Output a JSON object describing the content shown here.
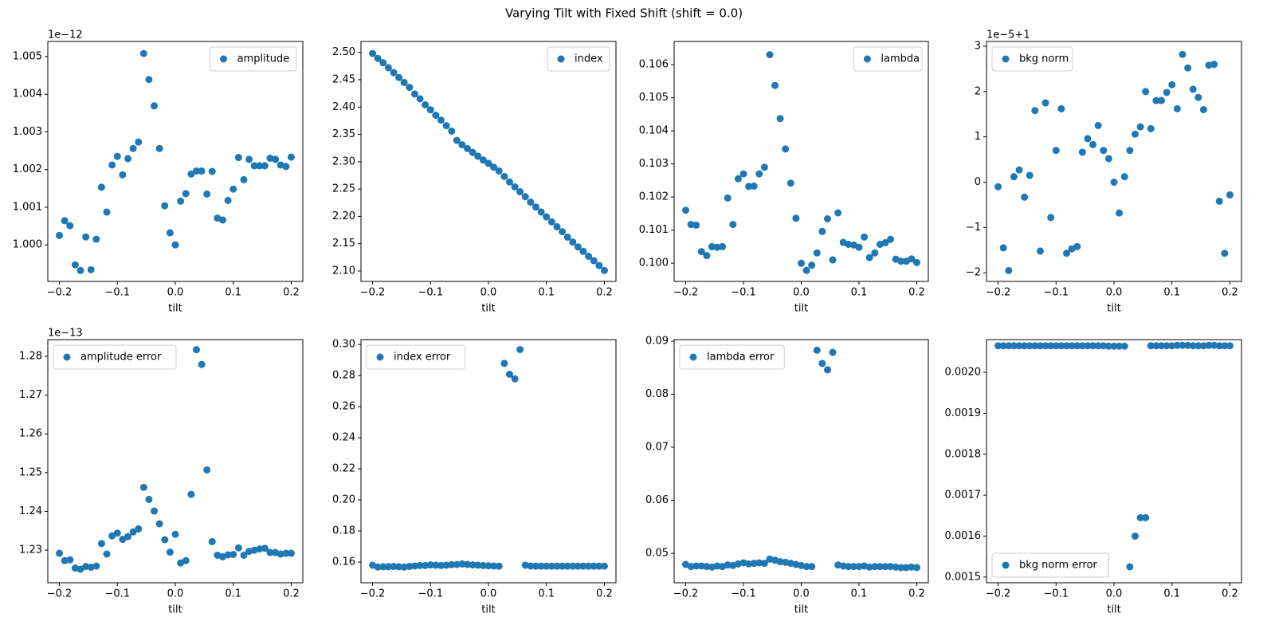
{
  "title": "Varying Tilt with Fixed Shift (shift = 0.0)",
  "chart_data": [
    {
      "type": "scatter",
      "xlabel": "tilt",
      "offset_text": "1e−12",
      "legend": "upper right",
      "x": [
        -0.2,
        -0.1909,
        -0.1818,
        -0.1727,
        -0.1636,
        -0.1545,
        -0.1455,
        -0.1364,
        -0.1273,
        -0.1182,
        -0.1091,
        -0.1,
        -0.0909,
        -0.0818,
        -0.0727,
        -0.0636,
        -0.0545,
        -0.0455,
        -0.0364,
        -0.0273,
        -0.0182,
        -0.0091,
        0,
        0.0091,
        0.0182,
        0.0273,
        0.0364,
        0.0455,
        0.0545,
        0.0636,
        0.0727,
        0.0818,
        0.0909,
        0.1,
        0.1091,
        0.1182,
        0.1273,
        0.1364,
        0.1455,
        0.1545,
        0.1636,
        0.1727,
        0.1818,
        0.1909,
        0.2
      ],
      "series": [
        {
          "name": "amplitude",
          "color": "#1f77b4",
          "values": [
            1.00025,
            1.00064,
            1.00051,
            0.99947,
            0.99932,
            1.00021,
            0.99934,
            1.00015,
            1.00153,
            1.00087,
            1.00212,
            1.00235,
            1.00186,
            1.00229,
            1.00256,
            1.00273,
            1.00508,
            1.00439,
            1.00369,
            1.00256,
            1.00104,
            1.00032,
            1.0,
            1.00116,
            1.00136,
            1.00188,
            1.00196,
            1.00196,
            1.00135,
            1.00195,
            1.00071,
            1.00066,
            1.00118,
            1.00148,
            1.00232,
            1.00173,
            1.00227,
            1.0021,
            1.0021,
            1.0021,
            1.0023,
            1.00227,
            1.00212,
            1.00208,
            1.00233
          ]
        }
      ],
      "xlim": [
        -0.22,
        0.22
      ],
      "ylim": [
        0.99903,
        1.0054
      ],
      "xticks": [
        {
          "value": -0.2,
          "label": "−0.2"
        },
        {
          "value": -0.1,
          "label": "−0.1"
        },
        {
          "value": 0,
          "label": "0.0"
        },
        0.1,
        0.2
      ],
      "yticks": [
        {
          "value": 1,
          "label": "1.000"
        },
        1.001,
        1.002,
        1.003,
        1.004,
        1.005
      ]
    },
    {
      "type": "scatter",
      "xlabel": "tilt",
      "legend": "upper right",
      "x": [
        -0.2,
        -0.1909,
        -0.1818,
        -0.1727,
        -0.1636,
        -0.1545,
        -0.1455,
        -0.1364,
        -0.1273,
        -0.1182,
        -0.1091,
        -0.1,
        -0.0909,
        -0.0818,
        -0.0727,
        -0.0636,
        -0.0545,
        -0.0455,
        -0.0364,
        -0.0273,
        -0.0182,
        -0.0091,
        0,
        0.0091,
        0.0182,
        0.0273,
        0.0364,
        0.0455,
        0.0545,
        0.0636,
        0.0727,
        0.0818,
        0.0909,
        0.1,
        0.1091,
        0.1182,
        0.1273,
        0.1364,
        0.1455,
        0.1545,
        0.1636,
        0.1727,
        0.1818,
        0.1909,
        0.2
      ],
      "series": [
        {
          "name": "index",
          "color": "#1f77b4",
          "values": [
            2.498,
            2.489,
            2.481,
            2.472,
            2.463,
            2.454,
            2.445,
            2.436,
            2.424,
            2.415,
            2.404,
            2.395,
            2.385,
            2.376,
            2.366,
            2.356,
            2.339,
            2.331,
            2.324,
            2.317,
            2.31,
            2.303,
            2.297,
            2.29,
            2.283,
            2.273,
            2.263,
            2.254,
            2.245,
            2.236,
            2.226,
            2.217,
            2.208,
            2.199,
            2.19,
            2.181,
            2.172,
            2.162,
            2.153,
            2.144,
            2.136,
            2.127,
            2.119,
            2.11,
            2.101
          ]
        }
      ],
      "xlim": [
        -0.22,
        0.22
      ],
      "ylim": [
        2.081,
        2.52
      ],
      "xticks": [
        {
          "value": -0.2,
          "label": "−0.2"
        },
        {
          "value": -0.1,
          "label": "−0.1"
        },
        {
          "value": 0,
          "label": "0.0"
        },
        0.1,
        0.2
      ],
      "yticks": [
        {
          "value": 2.1,
          "label": "2.10"
        },
        2.15,
        {
          "value": 2.2,
          "label": "2.20"
        },
        2.25,
        {
          "value": 2.3,
          "label": "2.30"
        },
        2.35,
        {
          "value": 2.4,
          "label": "2.40"
        },
        2.45,
        {
          "value": 2.5,
          "label": "2.50"
        }
      ]
    },
    {
      "type": "scatter",
      "xlabel": "tilt",
      "legend": "upper right",
      "x": [
        -0.2,
        -0.1909,
        -0.1818,
        -0.1727,
        -0.1636,
        -0.1545,
        -0.1455,
        -0.1364,
        -0.1273,
        -0.1182,
        -0.1091,
        -0.1,
        -0.0909,
        -0.0818,
        -0.0727,
        -0.0636,
        -0.0545,
        -0.0455,
        -0.0364,
        -0.0273,
        -0.0182,
        -0.0091,
        0,
        0.0091,
        0.0182,
        0.0273,
        0.0364,
        0.0455,
        0.0545,
        0.0636,
        0.0727,
        0.0818,
        0.0909,
        0.1,
        0.1091,
        0.1182,
        0.1273,
        0.1364,
        0.1455,
        0.1545,
        0.1636,
        0.1727,
        0.1818,
        0.1909,
        0.2
      ],
      "series": [
        {
          "name": "lambda",
          "color": "#1f77b4",
          "values": [
            0.1016,
            0.10117,
            0.10115,
            0.10035,
            0.10023,
            0.1005,
            0.10048,
            0.1005,
            0.10197,
            0.10117,
            0.10255,
            0.1027,
            0.10232,
            0.10233,
            0.1027,
            0.1029,
            0.1063,
            0.10537,
            0.10437,
            0.10345,
            0.10242,
            0.10136,
            0.1,
            0.09978,
            0.09994,
            0.10031,
            0.10096,
            0.10134,
            0.1001,
            0.10152,
            0.10063,
            0.10057,
            0.10055,
            0.10048,
            0.10079,
            0.10017,
            0.10031,
            0.10057,
            0.10062,
            0.10072,
            0.10012,
            0.10006,
            0.10006,
            0.10013,
            0.10002
          ]
        }
      ],
      "xlim": [
        -0.22,
        0.22
      ],
      "ylim": [
        0.09945,
        0.1067
      ],
      "xticks": [
        {
          "value": -0.2,
          "label": "−0.2"
        },
        {
          "value": -0.1,
          "label": "−0.1"
        },
        {
          "value": 0,
          "label": "0.0"
        },
        0.1,
        0.2
      ],
      "yticks": [
        {
          "value": 0.1,
          "label": "0.100"
        },
        0.101,
        0.102,
        0.103,
        0.104,
        0.105,
        0.106
      ]
    },
    {
      "type": "scatter",
      "xlabel": "tilt",
      "offset_text": "1e−5+1",
      "legend": "upper left",
      "x": [
        -0.2,
        -0.1909,
        -0.1818,
        -0.1727,
        -0.1636,
        -0.1545,
        -0.1455,
        -0.1364,
        -0.1273,
        -0.1182,
        -0.1091,
        -0.1,
        -0.0909,
        -0.0818,
        -0.0727,
        -0.0636,
        -0.0545,
        -0.0455,
        -0.0364,
        -0.0273,
        -0.0182,
        -0.0091,
        0,
        0.0091,
        0.0182,
        0.0273,
        0.0364,
        0.0455,
        0.0545,
        0.0636,
        0.0727,
        0.0818,
        0.0909,
        0.1,
        0.1091,
        0.1182,
        0.1273,
        0.1364,
        0.1455,
        0.1545,
        0.1636,
        0.1727,
        0.1818,
        0.1909,
        0.2
      ],
      "series": [
        {
          "name": "bkg norm",
          "color": "#1f77b4",
          "values": [
            -0.1,
            -1.45,
            -1.95,
            0.12,
            0.27,
            -0.33,
            0.15,
            1.58,
            -1.52,
            1.75,
            -0.78,
            0.7,
            1.62,
            -1.57,
            -1.47,
            -1.42,
            0.66,
            0.96,
            0.83,
            1.25,
            0.7,
            0.52,
            0,
            -0.68,
            0.12,
            0.7,
            1.06,
            1.22,
            2.0,
            1.18,
            1.8,
            1.8,
            1.98,
            2.15,
            1.62,
            2.82,
            2.52,
            2.05,
            1.87,
            1.6,
            2.58,
            2.6,
            -0.42,
            -1.57,
            -0.28
          ]
        }
      ],
      "xlim": [
        -0.22,
        0.22
      ],
      "ylim": [
        -2.19,
        3.105
      ],
      "xticks": [
        {
          "value": -0.2,
          "label": "−0.2"
        },
        {
          "value": -0.1,
          "label": "−0.1"
        },
        {
          "value": 0,
          "label": "0.0"
        },
        0.1,
        0.2
      ],
      "yticks": [
        {
          "value": -2,
          "label": "−2"
        },
        {
          "value": -1,
          "label": "−1"
        },
        0,
        1,
        2,
        3
      ]
    },
    {
      "type": "scatter",
      "xlabel": "tilt",
      "offset_text": "1e−13",
      "legend": "upper left",
      "x": [
        -0.2,
        -0.1909,
        -0.1818,
        -0.1727,
        -0.1636,
        -0.1545,
        -0.1455,
        -0.1364,
        -0.1273,
        -0.1182,
        -0.1091,
        -0.1,
        -0.0909,
        -0.0818,
        -0.0727,
        -0.0636,
        -0.0545,
        -0.0455,
        -0.0364,
        -0.0273,
        -0.0182,
        -0.0091,
        0,
        0.0091,
        0.0182,
        0.0273,
        0.0364,
        0.0455,
        0.0545,
        0.0636,
        0.0727,
        0.0818,
        0.0909,
        0.1,
        0.1091,
        0.1182,
        0.1273,
        0.1364,
        0.1455,
        0.1545,
        0.1636,
        0.1727,
        0.1818,
        0.1909,
        0.2
      ],
      "series": [
        {
          "name": "amplitude error",
          "color": "#1f77b4",
          "values": [
            1.2292,
            1.2273,
            1.2275,
            1.2254,
            1.2251,
            1.2258,
            1.2256,
            1.2259,
            1.2317,
            1.229,
            1.2337,
            1.2344,
            1.2328,
            1.2335,
            1.2347,
            1.2355,
            1.2462,
            1.2431,
            1.2401,
            1.2368,
            1.2327,
            1.2295,
            1.2341,
            1.2267,
            1.2273,
            1.2444,
            1.2817,
            1.2779,
            1.2507,
            1.2322,
            1.2287,
            1.2283,
            1.2288,
            1.2289,
            1.2306,
            1.2287,
            1.2297,
            1.23,
            1.2303,
            1.2305,
            1.2294,
            1.2294,
            1.229,
            1.2292,
            1.2292
          ]
        }
      ],
      "xlim": [
        -0.22,
        0.22
      ],
      "ylim": [
        1.2216,
        1.2843
      ],
      "xticks": [
        {
          "value": -0.2,
          "label": "−0.2"
        },
        {
          "value": -0.1,
          "label": "−0.1"
        },
        {
          "value": 0,
          "label": "0.0"
        },
        0.1,
        0.2
      ],
      "yticks": [
        1.23,
        1.24,
        1.25,
        1.26,
        1.27,
        1.28
      ]
    },
    {
      "type": "scatter",
      "xlabel": "tilt",
      "legend": "upper left",
      "x": [
        -0.2,
        -0.1909,
        -0.1818,
        -0.1727,
        -0.1636,
        -0.1545,
        -0.1455,
        -0.1364,
        -0.1273,
        -0.1182,
        -0.1091,
        -0.1,
        -0.0909,
        -0.0818,
        -0.0727,
        -0.0636,
        -0.0545,
        -0.0455,
        -0.0364,
        -0.0273,
        -0.0182,
        -0.0091,
        0,
        0.0091,
        0.0182,
        0.0273,
        0.0364,
        0.0455,
        0.0545,
        0.0636,
        0.0727,
        0.0818,
        0.0909,
        0.1,
        0.1091,
        0.1182,
        0.1273,
        0.1364,
        0.1455,
        0.1545,
        0.1636,
        0.1727,
        0.1818,
        0.1909,
        0.2
      ],
      "series": [
        {
          "name": "index error",
          "color": "#1f77b4",
          "values": [
            0.158,
            0.1568,
            0.157,
            0.157,
            0.1572,
            0.157,
            0.1568,
            0.1572,
            0.1575,
            0.1578,
            0.1578,
            0.1582,
            0.158,
            0.1578,
            0.158,
            0.1583,
            0.1585,
            0.1588,
            0.1585,
            0.1582,
            0.158,
            0.1578,
            0.1576,
            0.1575,
            0.1574,
            0.2878,
            0.2808,
            0.2779,
            0.2967,
            0.158,
            0.1575,
            0.1574,
            0.1574,
            0.1574,
            0.1574,
            0.1574,
            0.1574,
            0.1574,
            0.1574,
            0.1574,
            0.1574,
            0.1574,
            0.1574,
            0.1574,
            0.1574
          ]
        }
      ],
      "xlim": [
        -0.22,
        0.22
      ],
      "ylim": [
        0.1467,
        0.3031
      ],
      "xticks": [
        {
          "value": -0.2,
          "label": "−0.2"
        },
        {
          "value": -0.1,
          "label": "−0.1"
        },
        {
          "value": 0,
          "label": "0.0"
        },
        0.1,
        0.2
      ],
      "yticks": [
        0.16,
        0.18,
        {
          "value": 0.2,
          "label": "0.20"
        },
        0.22,
        0.24,
        0.26,
        0.28,
        {
          "value": 0.3,
          "label": "0.30"
        }
      ]
    },
    {
      "type": "scatter",
      "xlabel": "tilt",
      "legend": "upper left",
      "x": [
        -0.2,
        -0.1909,
        -0.1818,
        -0.1727,
        -0.1636,
        -0.1545,
        -0.1455,
        -0.1364,
        -0.1273,
        -0.1182,
        -0.1091,
        -0.1,
        -0.0909,
        -0.0818,
        -0.0727,
        -0.0636,
        -0.0545,
        -0.0455,
        -0.0364,
        -0.0273,
        -0.0182,
        -0.0091,
        0,
        0.0091,
        0.0182,
        0.0273,
        0.0364,
        0.0455,
        0.0545,
        0.0636,
        0.0727,
        0.0818,
        0.0909,
        0.1,
        0.1091,
        0.1182,
        0.1273,
        0.1364,
        0.1455,
        0.1545,
        0.1636,
        0.1727,
        0.1818,
        0.1909,
        0.2
      ],
      "series": [
        {
          "name": "lambda error",
          "color": "#1f77b4",
          "values": [
            0.0479,
            0.0475,
            0.0476,
            0.0476,
            0.0475,
            0.0474,
            0.0476,
            0.0475,
            0.0478,
            0.0477,
            0.048,
            0.0482,
            0.048,
            0.0481,
            0.0482,
            0.0481,
            0.0489,
            0.0487,
            0.0484,
            0.0483,
            0.0481,
            0.0479,
            0.0477,
            0.0475,
            0.0475,
            0.0883,
            0.0858,
            0.0846,
            0.0879,
            0.0478,
            0.0476,
            0.0475,
            0.0475,
            0.0475,
            0.0476,
            0.0474,
            0.0475,
            0.0475,
            0.0475,
            0.0475,
            0.0474,
            0.0473,
            0.0473,
            0.0474,
            0.0473
          ]
        }
      ],
      "xlim": [
        -0.22,
        0.22
      ],
      "ylim": [
        0.04444,
        0.0903
      ],
      "xticks": [
        {
          "value": -0.2,
          "label": "−0.2"
        },
        {
          "value": -0.1,
          "label": "−0.1"
        },
        {
          "value": 0,
          "label": "0.0"
        },
        0.1,
        0.2
      ],
      "yticks": [
        0.05,
        0.06,
        0.07,
        0.08,
        0.09
      ]
    },
    {
      "type": "scatter",
      "xlabel": "tilt",
      "legend": "lower left",
      "x": [
        -0.2,
        -0.1909,
        -0.1818,
        -0.1727,
        -0.1636,
        -0.1545,
        -0.1455,
        -0.1364,
        -0.1273,
        -0.1182,
        -0.1091,
        -0.1,
        -0.0909,
        -0.0818,
        -0.0727,
        -0.0636,
        -0.0545,
        -0.0455,
        -0.0364,
        -0.0273,
        -0.0182,
        -0.0091,
        0,
        0.0091,
        0.0182,
        0.0273,
        0.0364,
        0.0455,
        0.0545,
        0.0636,
        0.0727,
        0.0818,
        0.0909,
        0.1,
        0.1091,
        0.1182,
        0.1273,
        0.1364,
        0.1455,
        0.1545,
        0.1636,
        0.1727,
        0.1818,
        0.1909,
        0.2
      ],
      "series": [
        {
          "name": "bkg norm error",
          "color": "#1f77b4",
          "values": [
            0.002065,
            0.002065,
            0.002065,
            0.002065,
            0.002065,
            0.002065,
            0.002065,
            0.002065,
            0.002065,
            0.002065,
            0.002065,
            0.002065,
            0.002065,
            0.002065,
            0.002065,
            0.002065,
            0.002065,
            0.002065,
            0.002065,
            0.002065,
            0.002065,
            0.002064,
            0.002064,
            0.002064,
            0.002064,
            0.001525,
            0.0016,
            0.001645,
            0.001645,
            0.002065,
            0.002065,
            0.002065,
            0.002065,
            0.002065,
            0.002066,
            0.002066,
            0.002066,
            0.002065,
            0.002065,
            0.002065,
            0.002066,
            0.002066,
            0.002065,
            0.002065,
            0.002065
          ]
        }
      ],
      "xlim": [
        -0.22,
        0.22
      ],
      "ylim": [
        0.001486,
        0.00208
      ],
      "xticks": [
        {
          "value": -0.2,
          "label": "−0.2"
        },
        {
          "value": -0.1,
          "label": "−0.1"
        },
        {
          "value": 0,
          "label": "0.0"
        },
        0.1,
        0.2
      ],
      "yticks": [
        0.0015,
        0.0016,
        0.0017,
        0.0018,
        0.0019,
        {
          "value": 0.002,
          "label": "0.0020"
        }
      ]
    }
  ]
}
